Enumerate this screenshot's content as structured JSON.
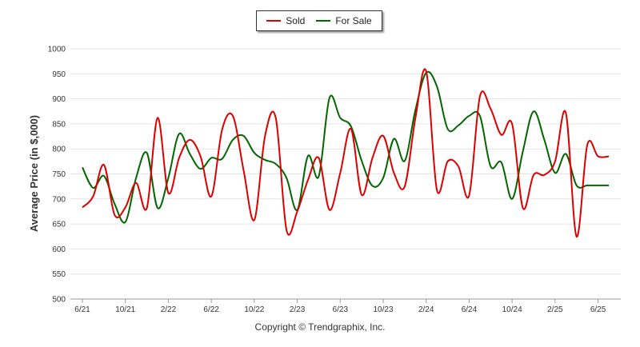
{
  "legend": {
    "items": [
      {
        "label": "Sold",
        "color": "#dd0000"
      },
      {
        "label": "For Sale",
        "color": "#006600"
      }
    ]
  },
  "footer": {
    "text": "Copyright © Trendgraphix, Inc."
  },
  "chart_data": {
    "type": "line",
    "title": "",
    "xlabel": "",
    "ylabel": "Average Price (in $,000)",
    "ylim": [
      500,
      1000
    ],
    "yticks": [
      500,
      550,
      600,
      650,
      700,
      750,
      800,
      850,
      900,
      950,
      1000
    ],
    "xticks": [
      "6/21",
      "10/21",
      "2/22",
      "6/22",
      "10/22",
      "2/23",
      "6/23",
      "10/23",
      "2/24",
      "6/24",
      "10/24",
      "2/25",
      "6/25"
    ],
    "grid": "horizontal",
    "legend_position": "top-center",
    "x": [
      "6/21",
      "7/21",
      "8/21",
      "9/21",
      "10/21",
      "11/21",
      "12/21",
      "1/22",
      "2/22",
      "3/22",
      "4/22",
      "5/22",
      "6/22",
      "7/22",
      "8/22",
      "9/22",
      "10/22",
      "11/22",
      "12/22",
      "1/23",
      "2/23",
      "3/23",
      "4/23",
      "5/23",
      "6/23",
      "7/23",
      "8/23",
      "9/23",
      "10/23",
      "11/23",
      "12/23",
      "1/24",
      "2/24",
      "3/24",
      "4/24",
      "5/24",
      "6/24",
      "7/24",
      "8/24",
      "9/24",
      "10/24",
      "11/24",
      "12/24",
      "1/25",
      "2/25",
      "3/25",
      "4/25",
      "5/25",
      "6/25",
      "7/25"
    ],
    "series": [
      {
        "name": "Sold",
        "color": "#dd0000",
        "values": [
          683,
          705,
          768,
          668,
          683,
          732,
          682,
          862,
          712,
          782,
          818,
          785,
          705,
          838,
          866,
          758,
          658,
          826,
          862,
          638,
          675,
          738,
          782,
          678,
          752,
          840,
          708,
          782,
          826,
          752,
          725,
          862,
          955,
          718,
          775,
          765,
          707,
          905,
          880,
          828,
          850,
          682,
          748,
          748,
          775,
          872,
          625,
          808,
          785,
          785
        ]
      },
      {
        "name": "For Sale",
        "color": "#006600",
        "values": [
          763,
          722,
          746,
          690,
          654,
          742,
          792,
          682,
          742,
          830,
          790,
          760,
          782,
          780,
          818,
          826,
          792,
          778,
          770,
          742,
          678,
          786,
          745,
          902,
          862,
          845,
          776,
          726,
          742,
          820,
          776,
          878,
          952,
          925,
          840,
          847,
          866,
          866,
          765,
          773,
          700,
          795,
          875,
          818,
          752,
          790,
          727,
          727,
          727,
          727
        ]
      }
    ]
  }
}
